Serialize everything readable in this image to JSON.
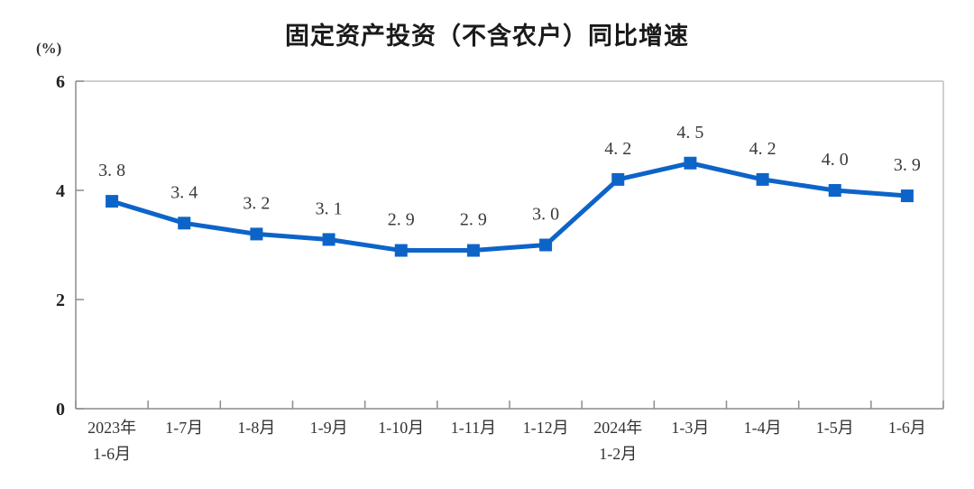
{
  "chart_data": {
    "type": "line",
    "title": "固定资产投资（不含农户）同比增速",
    "unit_label": "(%)",
    "categories": [
      [
        "2023年",
        "1-6月"
      ],
      [
        "1-7月"
      ],
      [
        "1-8月"
      ],
      [
        "1-9月"
      ],
      [
        "1-10月"
      ],
      [
        "1-11月"
      ],
      [
        "1-12月"
      ],
      [
        "2024年",
        "1-2月"
      ],
      [
        "1-3月"
      ],
      [
        "1-4月"
      ],
      [
        "1-5月"
      ],
      [
        "1-6月"
      ]
    ],
    "values": [
      3.8,
      3.4,
      3.2,
      3.1,
      2.9,
      2.9,
      3.0,
      4.2,
      4.5,
      4.2,
      4.0,
      3.9
    ],
    "value_labels": [
      "3. 8",
      "3. 4",
      "3. 2",
      "3. 1",
      "2. 9",
      "2. 9",
      "3. 0",
      "4. 2",
      "4. 5",
      "4. 2",
      "4. 0",
      "3. 9"
    ],
    "ylim": [
      0,
      6
    ],
    "yticks": [
      0,
      2,
      4,
      6
    ],
    "xlabel": "",
    "ylabel": "(%)",
    "grid": false,
    "legend_position": "none",
    "line_color": "#0d64c8",
    "marker": "square",
    "axis_color": "#8c8c8c",
    "border_color": "#bfbfbf",
    "label_color": "#3a3a3a",
    "background_color": "#ffffff"
  }
}
